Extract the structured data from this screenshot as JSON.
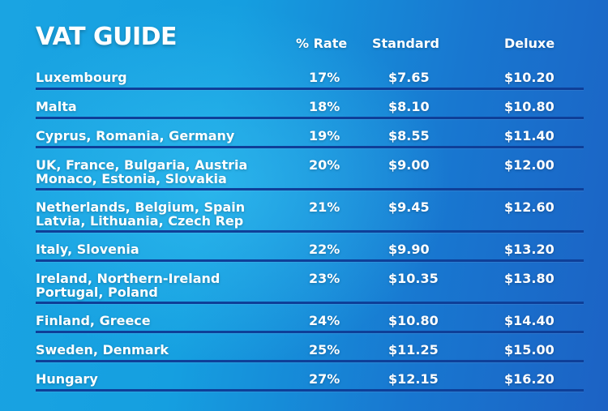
{
  "title": "VAT GUIDE",
  "columns": {
    "rate": "% Rate",
    "standard": "Standard",
    "deluxe": "Deluxe"
  },
  "rows": [
    {
      "country": "Luxembourg",
      "rate": "17%",
      "standard": "$7.65",
      "deluxe": "$10.20"
    },
    {
      "country": "Malta",
      "rate": "18%",
      "standard": "$8.10",
      "deluxe": "$10.80"
    },
    {
      "country": "Cyprus, Romania, Germany",
      "rate": "19%",
      "standard": "$8.55",
      "deluxe": "$11.40"
    },
    {
      "country": "UK, France, Bulgaria, Austria\nMonaco, Estonia, Slovakia",
      "rate": "20%",
      "standard": "$9.00",
      "deluxe": "$12.00"
    },
    {
      "country": "Netherlands, Belgium, Spain\nLatvia, Lithuania, Czech Rep",
      "rate": "21%",
      "standard": "$9.45",
      "deluxe": "$12.60"
    },
    {
      "country": "Italy, Slovenia",
      "rate": "22%",
      "standard": "$9.90",
      "deluxe": "$13.20"
    },
    {
      "country": "Ireland, Northern-Ireland\nPortugal, Poland",
      "rate": "23%",
      "standard": "$10.35",
      "deluxe": "$13.80"
    },
    {
      "country": "Finland, Greece",
      "rate": "24%",
      "standard": "$10.80",
      "deluxe": "$14.40"
    },
    {
      "country": "Sweden, Denmark",
      "rate": "25%",
      "standard": "$11.25",
      "deluxe": "$15.00"
    },
    {
      "country": "Hungary",
      "rate": "27%",
      "standard": "$12.15",
      "deluxe": "$16.20"
    }
  ]
}
